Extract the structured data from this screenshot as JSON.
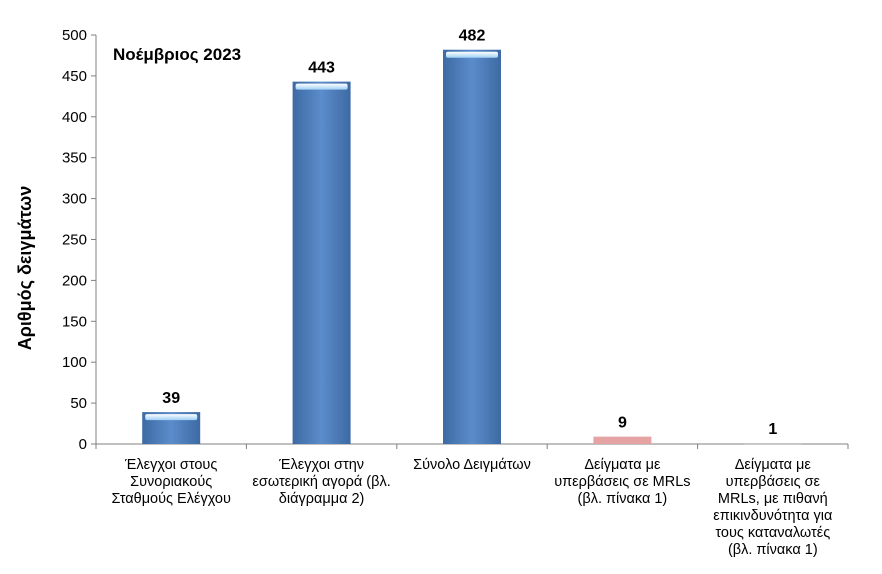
{
  "chart_data": {
    "type": "bar",
    "title": "Νοέμβριος 2023",
    "xlabel": "",
    "ylabel": "Αριθμός δειγμάτων",
    "ylim": [
      0,
      500
    ],
    "yticks": [
      0,
      50,
      100,
      150,
      200,
      250,
      300,
      350,
      400,
      450,
      500
    ],
    "categories": [
      "Έλεγχοι στους Συνοριακούς Σταθμούς Ελέγχου",
      "Έλεγχοι στην εσωτερική αγορά (βλ. διάγραμμα 2)",
      "Σύνολο Δειγμάτων",
      "Δείγματα με υπερβάσεις σε MRLs (βλ. πίνακα 1)",
      "Δείγματα με υπερβάσεις σε MRLs, με πιθανή επικινδυνότητα για τους καταναλωτές (βλ. πίνακα 1)"
    ],
    "values": [
      39,
      443,
      482,
      9,
      1
    ],
    "colors": [
      "#4f81bd",
      "#4f81bd",
      "#4f81bd",
      "#e6a3a3",
      "#b8b8b8"
    ],
    "grid": false,
    "legend": "none"
  }
}
